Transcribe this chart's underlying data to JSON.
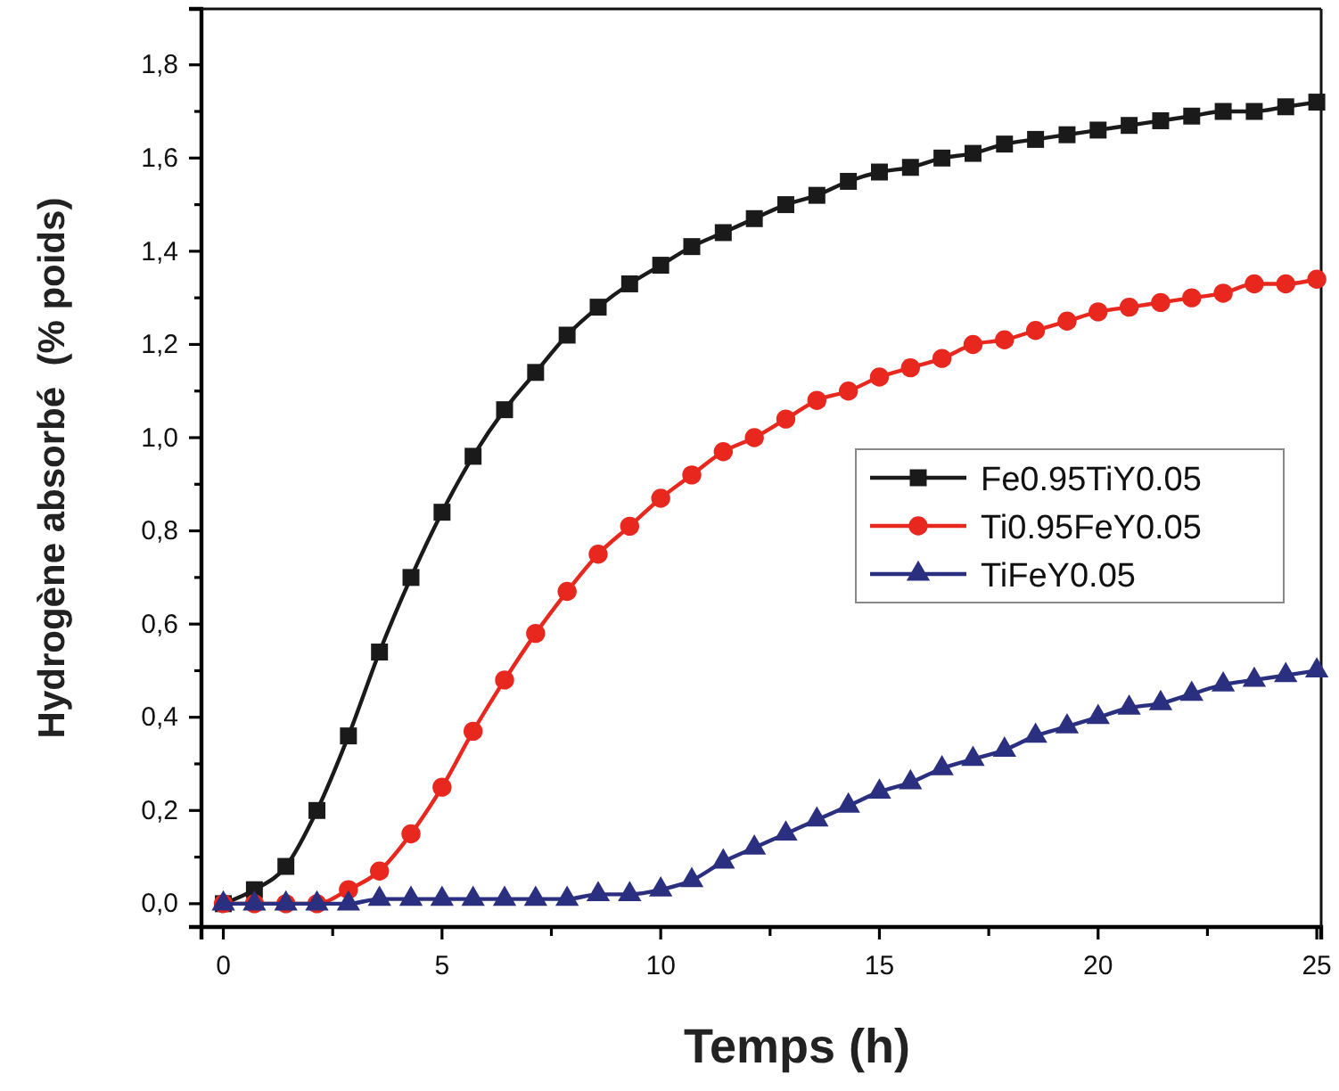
{
  "chart_data": {
    "type": "line",
    "xlabel": "Temps (h)",
    "ylabel": "Hydrogène absorbé  (% poids)",
    "x": [
      0,
      0.71,
      1.43,
      2.14,
      2.86,
      3.57,
      4.29,
      5,
      5.71,
      6.43,
      7.14,
      7.86,
      8.57,
      9.29,
      10,
      10.71,
      11.43,
      12.14,
      12.86,
      13.57,
      14.29,
      15,
      15.71,
      16.43,
      17.14,
      17.86,
      18.57,
      19.29,
      20,
      20.71,
      21.43,
      22.14,
      22.86,
      23.57,
      24.29,
      25
    ],
    "series": [
      {
        "name": "Fe0.95TiY0.05",
        "color": "#1a1a1a",
        "marker": "square",
        "values": [
          0,
          0.03,
          0.08,
          0.2,
          0.36,
          0.54,
          0.7,
          0.84,
          0.96,
          1.06,
          1.14,
          1.22,
          1.28,
          1.33,
          1.37,
          1.41,
          1.44,
          1.47,
          1.5,
          1.52,
          1.55,
          1.57,
          1.58,
          1.6,
          1.61,
          1.63,
          1.64,
          1.65,
          1.66,
          1.67,
          1.68,
          1.69,
          1.7,
          1.7,
          1.71,
          1.72
        ]
      },
      {
        "name": "Ti0.95FeY0.05",
        "color": "#e8281e",
        "marker": "circle",
        "values": [
          0,
          0,
          0,
          0,
          0.03,
          0.07,
          0.15,
          0.25,
          0.37,
          0.48,
          0.58,
          0.67,
          0.75,
          0.81,
          0.87,
          0.92,
          0.97,
          1.0,
          1.04,
          1.08,
          1.1,
          1.13,
          1.15,
          1.17,
          1.2,
          1.21,
          1.23,
          1.25,
          1.27,
          1.28,
          1.29,
          1.3,
          1.31,
          1.33,
          1.33,
          1.34
        ]
      },
      {
        "name": "TiFeY0.05",
        "color": "#2b2f80",
        "marker": "triangle",
        "values": [
          0,
          0,
          0,
          0,
          0,
          0.01,
          0.01,
          0.01,
          0.01,
          0.01,
          0.01,
          0.01,
          0.02,
          0.02,
          0.03,
          0.05,
          0.09,
          0.12,
          0.15,
          0.18,
          0.21,
          0.24,
          0.26,
          0.29,
          0.31,
          0.33,
          0.36,
          0.38,
          0.4,
          0.42,
          0.43,
          0.45,
          0.47,
          0.48,
          0.49,
          0.5
        ]
      }
    ],
    "xlim": [
      -0.5,
      25.1
    ],
    "ylim": [
      -0.05,
      1.92
    ],
    "xticks": [
      0,
      {
        "value": 2.5,
        "label": null
      },
      5,
      {
        "value": 7.5,
        "label": null
      },
      10,
      {
        "value": 12.5,
        "label": null
      },
      15,
      {
        "value": 17.5,
        "label": null
      },
      20,
      {
        "value": 22.5,
        "label": null
      },
      25
    ],
    "yticks": [
      {
        "value": 0,
        "label": "0,0"
      },
      {
        "value": 0.1,
        "label": null
      },
      {
        "value": 0.2,
        "label": "0,2"
      },
      {
        "value": 0.3,
        "label": null
      },
      {
        "value": 0.4,
        "label": "0,4"
      },
      {
        "value": 0.5,
        "label": null
      },
      {
        "value": 0.6,
        "label": "0,6"
      },
      {
        "value": 0.7,
        "label": null
      },
      {
        "value": 0.8,
        "label": "0,8"
      },
      {
        "value": 0.9,
        "label": null
      },
      {
        "value": 1.0,
        "label": "1,0"
      },
      {
        "value": 1.1,
        "label": null
      },
      {
        "value": 1.2,
        "label": "1,2"
      },
      {
        "value": 1.3,
        "label": null
      },
      {
        "value": 1.4,
        "label": "1,4"
      },
      {
        "value": 1.5,
        "label": null
      },
      {
        "value": 1.6,
        "label": "1,6"
      },
      {
        "value": 1.7,
        "label": null
      },
      {
        "value": 1.8,
        "label": "1,8"
      }
    ],
    "grid": false,
    "legend": "right",
    "line_style": "solid"
  }
}
